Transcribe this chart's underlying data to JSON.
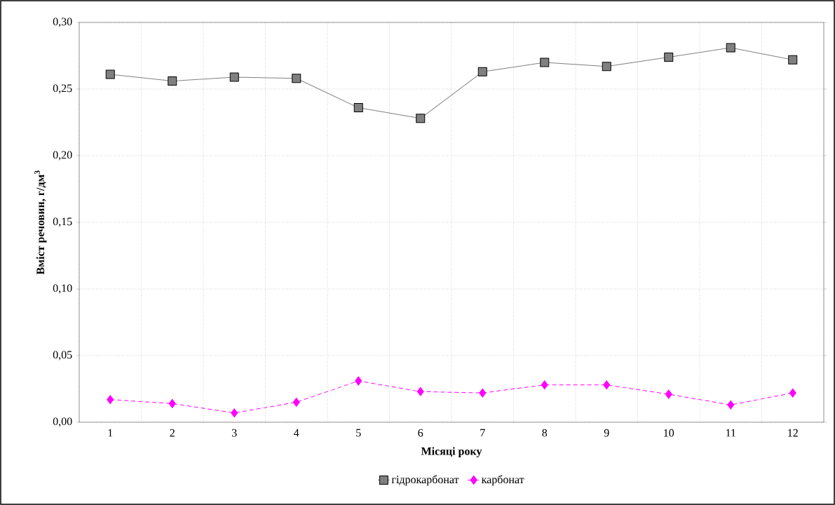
{
  "chart_data": {
    "type": "line",
    "xlabel": "Місяці року",
    "ylabel": "Вміст речовин, г/дм$^{3}$",
    "categories": [
      "1",
      "2",
      "3",
      "4",
      "5",
      "6",
      "7",
      "8",
      "9",
      "10",
      "11",
      "12"
    ],
    "series": [
      {
        "name": "гідрокарбонат",
        "color": "#808080",
        "marker": "square",
        "line_style": "solid",
        "values": [
          0.261,
          0.256,
          0.259,
          0.258,
          0.236,
          0.228,
          0.263,
          0.27,
          0.267,
          0.274,
          0.281,
          0.272
        ]
      },
      {
        "name": "карбонат",
        "color": "#ff00ff",
        "marker": "diamond",
        "line_style": "dashed",
        "values": [
          0.017,
          0.014,
          0.007,
          0.015,
          0.031,
          0.023,
          0.022,
          0.028,
          0.028,
          0.021,
          0.013,
          0.022
        ]
      }
    ],
    "ylim": [
      0,
      0.3
    ],
    "yticks": [
      {
        "value": 0,
        "label": "0,00"
      },
      {
        "value": 0.05,
        "label": "0,05"
      },
      {
        "value": 0.1,
        "label": "0,10"
      },
      {
        "value": 0.15,
        "label": "0,15"
      },
      {
        "value": 0.2,
        "label": "0,20"
      },
      {
        "value": 0.25,
        "label": "0,25"
      },
      {
        "value": 0.3,
        "label": "0,30"
      }
    ],
    "grid": true,
    "legend": "bottom"
  }
}
